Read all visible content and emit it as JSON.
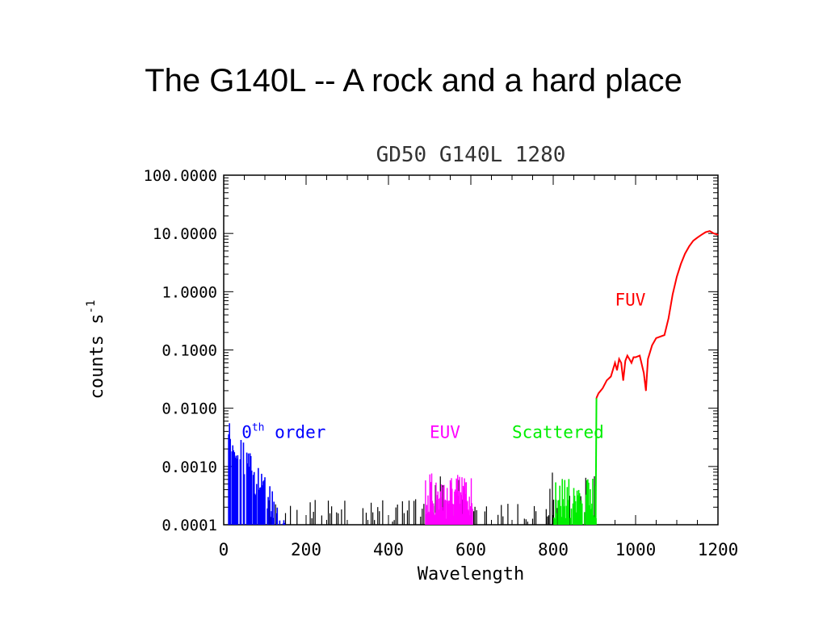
{
  "slide_title": "The G140L -- A rock and a hard place",
  "chart_data": {
    "type": "line",
    "title": "GD50 G140L 1280",
    "xlabel": "Wavelength",
    "ylabel": "counts s",
    "ylabel_superscript": "-1",
    "xlim": [
      0,
      1200
    ],
    "ylim": [
      0.0001,
      100
    ],
    "y_scale": "log",
    "x_ticks": [
      0,
      200,
      400,
      600,
      800,
      1000,
      1200
    ],
    "x_tick_labels": [
      "0",
      "200",
      "400",
      "600",
      "800",
      "1000",
      "1200"
    ],
    "y_ticks": [
      0.0001,
      0.001,
      0.01,
      0.1,
      1,
      10,
      100
    ],
    "y_tick_labels": [
      "0.0001",
      "0.0010",
      "0.0100",
      "0.1000",
      "1.0000",
      "10.0000",
      "100.0000"
    ],
    "grid": false,
    "annotations": [
      {
        "text": "0",
        "superscript": "th",
        "suffix": " order",
        "x": 20,
        "y": 0.004,
        "color": "#0000ff"
      },
      {
        "text": "EUV",
        "x": 500,
        "y": 0.004,
        "color": "#ff00ff"
      },
      {
        "text": "Scattered",
        "x": 700,
        "y": 0.004,
        "color": "#00ee00"
      },
      {
        "text": "FUV",
        "x": 950,
        "y": 0.75,
        "color": "#ff0000"
      }
    ],
    "series": [
      {
        "color": "#ff0000",
        "x": [
          905,
          910,
          920,
          930,
          940,
          950,
          955,
          960,
          965,
          970,
          975,
          980,
          985,
          990,
          995,
          1000,
          1010,
          1020,
          1025,
          1030,
          1040,
          1050,
          1060,
          1070,
          1080,
          1090,
          1100,
          1110,
          1120,
          1130,
          1140,
          1150,
          1160,
          1170,
          1180,
          1190,
          1200
        ],
        "y": [
          0.015,
          0.018,
          0.022,
          0.03,
          0.035,
          0.06,
          0.045,
          0.07,
          0.06,
          0.03,
          0.065,
          0.08,
          0.07,
          0.06,
          0.075,
          0.075,
          0.08,
          0.04,
          0.02,
          0.07,
          0.12,
          0.16,
          0.17,
          0.18,
          0.35,
          0.9,
          1.8,
          3.0,
          4.5,
          6.0,
          7.5,
          8.5,
          9.5,
          10.5,
          11.0,
          10.0,
          9.5
        ]
      }
    ]
  }
}
